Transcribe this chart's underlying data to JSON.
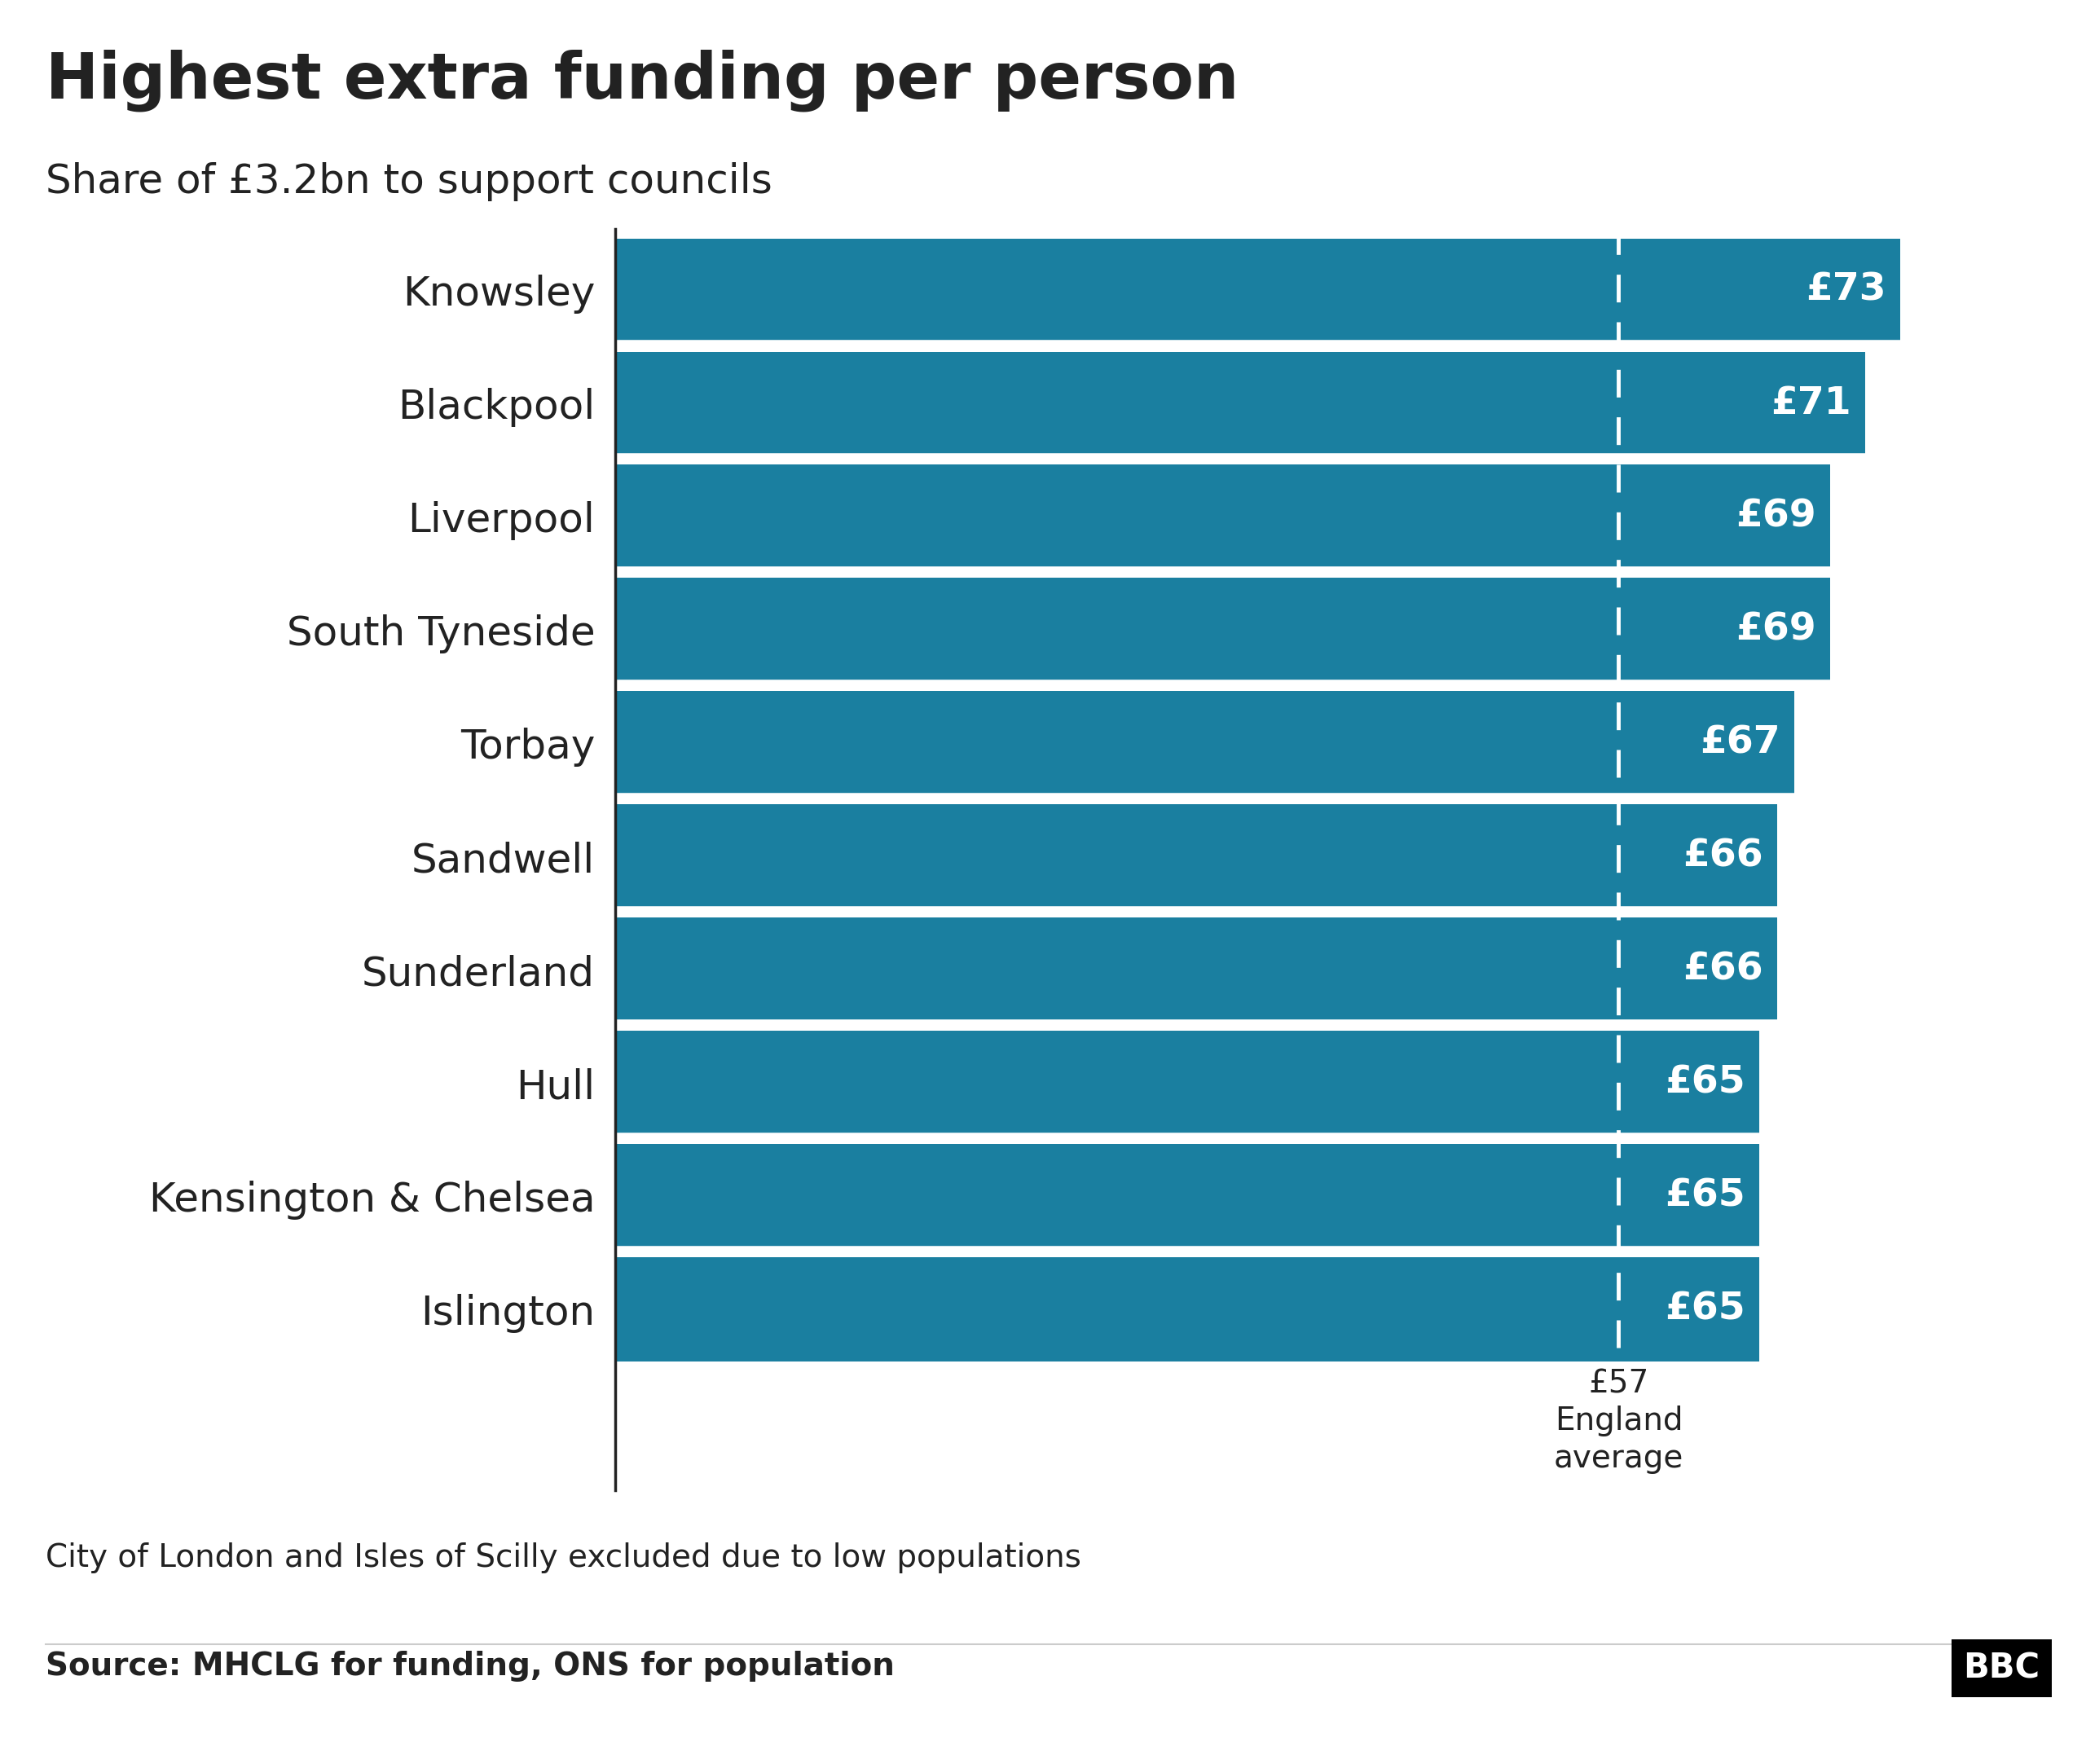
{
  "title": "Highest extra funding per person",
  "subtitle": "Share of £3.2bn to support councils",
  "categories": [
    "Knowsley",
    "Blackpool",
    "Liverpool",
    "South Tyneside",
    "Torbay",
    "Sandwell",
    "Sunderland",
    "Hull",
    "Kensington & Chelsea",
    "Islington"
  ],
  "values": [
    73,
    71,
    69,
    69,
    67,
    66,
    66,
    65,
    65,
    65
  ],
  "bar_color": "#1a7fa0",
  "bar_label_color": "#ffffff",
  "average_value": 57,
  "average_label_line1": "£57",
  "average_label_line2": "England",
  "average_label_line3": "average",
  "note": "City of London and Isles of Scilly excluded due to low populations",
  "source": "Source: MHCLG for funding, ONS for population",
  "bbc_logo": "BBC",
  "background_color": "#ffffff",
  "title_fontsize": 56,
  "subtitle_fontsize": 36,
  "bar_label_fontsize": 34,
  "ytick_fontsize": 36,
  "note_fontsize": 28,
  "source_fontsize": 28,
  "average_fontsize": 28,
  "xlim": [
    0,
    80
  ],
  "spine_color": "#222222",
  "text_color": "#222222",
  "separator_color": "#ffffff",
  "dashed_line_color": "#ffffff",
  "source_line_color": "#cccccc",
  "bar_height": 0.92
}
